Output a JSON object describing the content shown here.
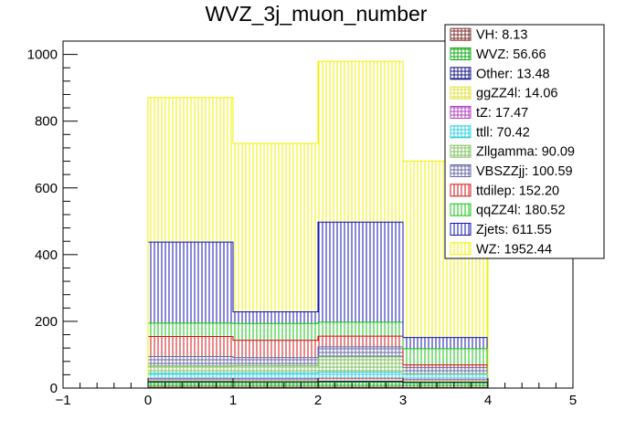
{
  "chart_data": {
    "type": "bar",
    "stacked": true,
    "title": "WVZ_3j_muon_number",
    "xlabel": "",
    "ylabel": "",
    "xlim": [
      -1,
      5
    ],
    "ylim": [
      0,
      1040
    ],
    "x_ticks": [
      -1,
      0,
      1,
      2,
      3,
      4,
      5
    ],
    "y_ticks": [
      0,
      200,
      400,
      600,
      800,
      1000
    ],
    "bin_edges": [
      0,
      1,
      2,
      3,
      4
    ],
    "legend_position": "top-right",
    "series": [
      {
        "name": "VH",
        "total": "8.13",
        "color": "#7b2d2d",
        "pattern": "cross",
        "values": [
          2.5,
          2,
          2,
          1.6
        ]
      },
      {
        "name": "WVZ",
        "total": "56.66",
        "color": "#10a810",
        "pattern": "cross",
        "values": [
          14,
          14,
          15,
          13.7
        ]
      },
      {
        "name": "Other",
        "total": "13.48",
        "color": "#1a1a8a",
        "pattern": "cross",
        "values": [
          3.5,
          3.5,
          3.5,
          3
        ]
      },
      {
        "name": "ggZZ4l",
        "total": "14.06",
        "color": "#e0e040",
        "pattern": "cross",
        "values": [
          3.5,
          3.5,
          4,
          3
        ]
      },
      {
        "name": "tZ",
        "total": "17.47",
        "color": "#b040c0",
        "pattern": "cross",
        "values": [
          4,
          4.5,
          5,
          4
        ]
      },
      {
        "name": "ttll",
        "total": "70.42",
        "color": "#30d0e0",
        "pattern": "cross",
        "values": [
          17,
          18,
          18,
          17.4
        ]
      },
      {
        "name": "Zllgamma",
        "total": "90.09",
        "color": "#80c060",
        "pattern": "cross",
        "values": [
          22,
          22,
          46,
          0
        ]
      },
      {
        "name": "VBSZZjj",
        "total": "100.59",
        "color": "#6a6aa8",
        "pattern": "cross",
        "values": [
          28,
          24,
          30,
          18.6
        ]
      },
      {
        "name": "ttdilep",
        "total": "152.20",
        "color": "#d01010",
        "pattern": "vertical",
        "values": [
          60,
          52,
          32,
          8.2
        ]
      },
      {
        "name": "qqZZ4l",
        "total": "180.52",
        "color": "#10c010",
        "pattern": "vertical",
        "values": [
          40,
          50,
          42,
          48.5
        ]
      },
      {
        "name": "Zjets",
        "total": "611.55",
        "color": "#1010b0",
        "pattern": "vertical",
        "values": [
          243,
          35,
          300,
          33.5
        ]
      },
      {
        "name": "WZ",
        "total": "1952.44",
        "color": "#f0f000",
        "pattern": "vertical",
        "values": [
          433,
          505,
          482,
          529
        ]
      }
    ]
  }
}
